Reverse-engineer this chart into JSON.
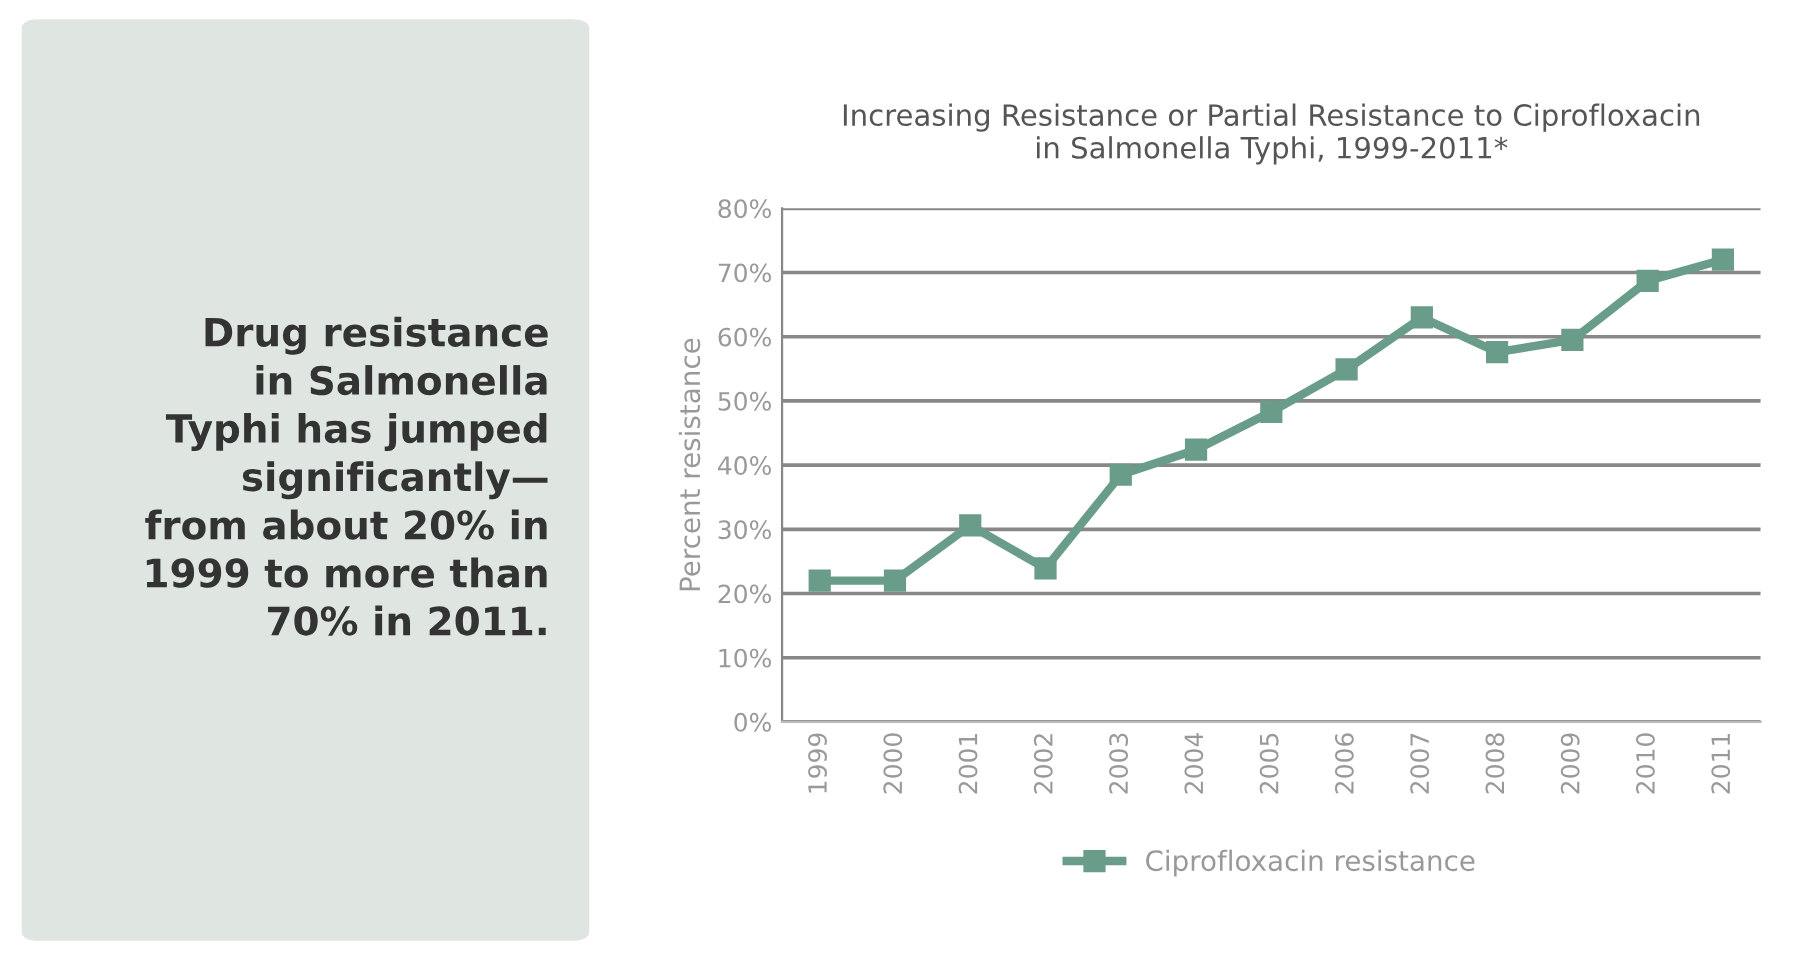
{
  "chart_data": {
    "type": "line",
    "title": "Increasing Resistance or Partial Resistance to Ciprofloxacin\nin Salmonella Typhi, 1999-2011*",
    "ylabel": "Percent resistance",
    "categories": [
      "1999",
      "2000",
      "2001",
      "2002",
      "2003",
      "2004",
      "2005",
      "2006",
      "2007",
      "2008",
      "2009",
      "2010",
      "2011"
    ],
    "series": [
      {
        "name": "Ciprofloxacin resistance",
        "color": "#6a9c8a",
        "values": [
          22,
          22,
          30.6,
          23.9,
          38.5,
          42.4,
          48.3,
          54.9,
          63,
          57.6,
          59.5,
          68.7,
          72
        ]
      }
    ],
    "ylim": [
      0,
      80
    ],
    "yticks": [
      {
        "value": 0,
        "label": "0%"
      },
      {
        "value": 10,
        "label": "10%"
      },
      {
        "value": 20,
        "label": "20%"
      },
      {
        "value": 30,
        "label": "30%"
      },
      {
        "value": 40,
        "label": "40%"
      },
      {
        "value": 50,
        "label": "50%"
      },
      {
        "value": 60,
        "label": "60%"
      },
      {
        "value": 70,
        "label": "70%"
      },
      {
        "value": 80,
        "label": "80%"
      }
    ],
    "grid": "y",
    "legend": "bottom",
    "marker": "square",
    "line_style": "solid",
    "annotations": [
      "Drug resistance\nin Salmonella\nTyphi has jumped\nsignificantly—\nfrom about 20% in\n1999 to more than\n70% in 2011."
    ]
  }
}
